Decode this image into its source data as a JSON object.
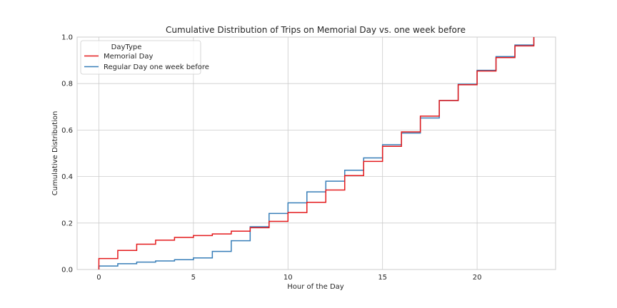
{
  "chart_data": {
    "type": "line",
    "step": "post",
    "title": "Cumulative Distribution of Trips on Memorial Day vs. one week before",
    "xlabel": "Hour of the Day",
    "ylabel": "Cumulative Distribution",
    "xlim": [
      -1.15,
      24.15
    ],
    "ylim": [
      0.0,
      1.0
    ],
    "xticks": [
      0,
      5,
      10,
      15,
      20
    ],
    "xtick_labels": [
      "0",
      "5",
      "10",
      "15",
      "20"
    ],
    "yticks": [
      0.0,
      0.2,
      0.4,
      0.6,
      0.8,
      1.0
    ],
    "ytick_labels": [
      "0.0",
      "0.2",
      "0.4",
      "0.6",
      "0.8",
      "1.0"
    ],
    "grid": true,
    "legend": {
      "title": "DayType",
      "position": "top-left"
    },
    "x": [
      0,
      1,
      2,
      3,
      4,
      5,
      6,
      7,
      8,
      9,
      10,
      11,
      12,
      13,
      14,
      15,
      16,
      17,
      18,
      19,
      20,
      21,
      22,
      23
    ],
    "series": [
      {
        "name": "Memorial Day",
        "color": "#e41a1c",
        "values": [
          0.047,
          0.082,
          0.109,
          0.126,
          0.138,
          0.146,
          0.153,
          0.165,
          0.18,
          0.207,
          0.245,
          0.289,
          0.342,
          0.404,
          0.465,
          0.53,
          0.592,
          0.66,
          0.727,
          0.795,
          0.854,
          0.912,
          0.962,
          1.0
        ]
      },
      {
        "name": "Regular Day one week before",
        "color": "#377eb8",
        "values": [
          0.015,
          0.025,
          0.032,
          0.037,
          0.042,
          0.05,
          0.078,
          0.124,
          0.184,
          0.241,
          0.287,
          0.334,
          0.38,
          0.427,
          0.48,
          0.537,
          0.587,
          0.652,
          0.727,
          0.797,
          0.857,
          0.916,
          0.966,
          1.0
        ]
      }
    ]
  }
}
